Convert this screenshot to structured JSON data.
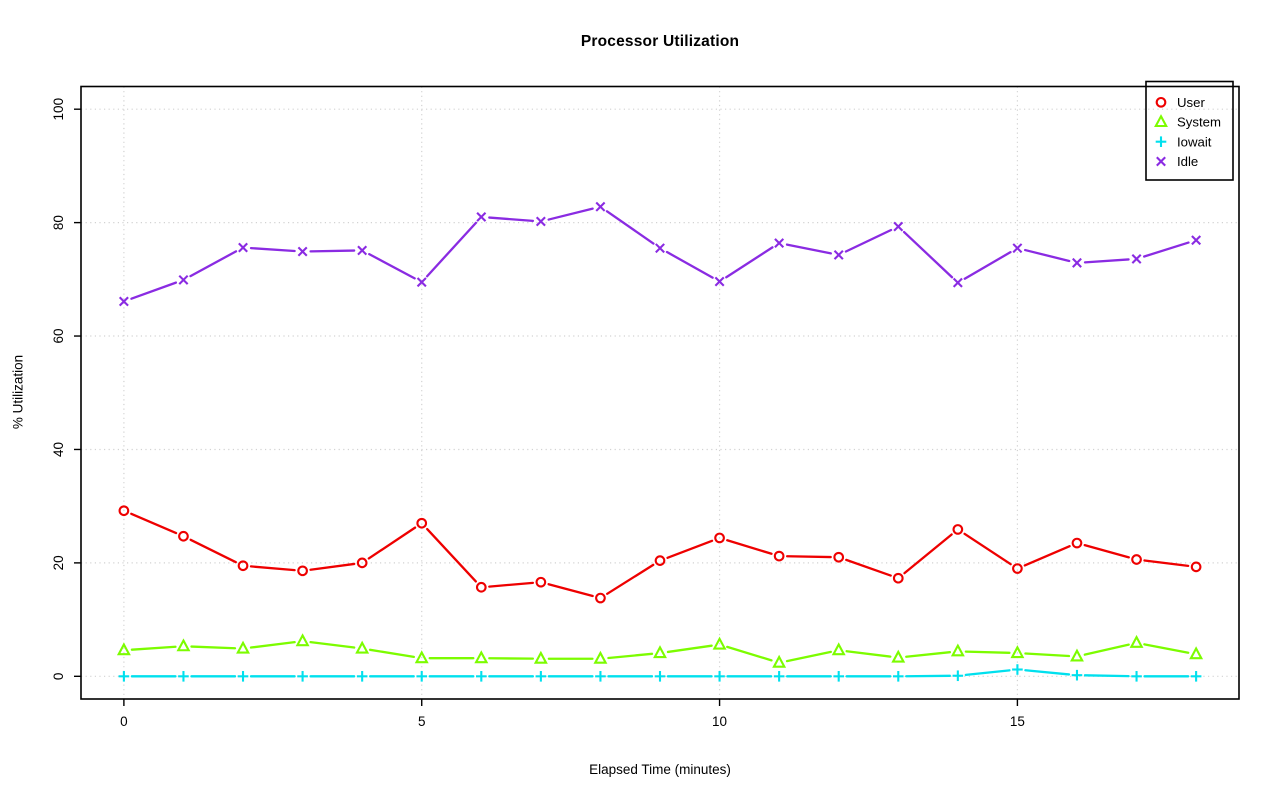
{
  "chart_data": {
    "type": "line",
    "title": "Processor Utilization",
    "xlabel": "Elapsed Time (minutes)",
    "ylabel": "% Utilization",
    "x": [
      0,
      1,
      2,
      3,
      4,
      5,
      6,
      7,
      8,
      9,
      10,
      11,
      12,
      13,
      14,
      15,
      16,
      17,
      18
    ],
    "xlim": [
      0,
      18
    ],
    "ylim": [
      0,
      100
    ],
    "xticks": [
      0,
      5,
      10,
      15
    ],
    "yticks": [
      0,
      20,
      40,
      60,
      80,
      100
    ],
    "grid": true,
    "grid_color": "#d2d2d2",
    "axis_color": "#000000",
    "legend_position": "top-right",
    "series": [
      {
        "name": "User",
        "color": "#ee0000",
        "marker": "circle",
        "values": [
          29.2,
          24.7,
          19.5,
          18.6,
          20.0,
          27.0,
          15.7,
          16.6,
          13.8,
          20.4,
          24.4,
          21.2,
          21.0,
          17.3,
          25.9,
          19.0,
          23.5,
          20.6,
          19.3
        ]
      },
      {
        "name": "System",
        "color": "#7cfc00",
        "marker": "triangle",
        "values": [
          4.6,
          5.3,
          4.9,
          6.2,
          4.9,
          3.2,
          3.2,
          3.1,
          3.1,
          4.1,
          5.6,
          2.4,
          4.6,
          3.3,
          4.4,
          4.1,
          3.5,
          5.9,
          3.9
        ]
      },
      {
        "name": "Iowait",
        "color": "#00e0ee",
        "marker": "plus",
        "values": [
          0,
          0,
          0,
          0,
          0,
          0,
          0,
          0,
          0,
          0,
          0,
          0,
          0,
          0,
          0.1,
          1.2,
          0.2,
          0,
          0
        ]
      },
      {
        "name": "Idle",
        "color": "#8a2be2",
        "marker": "x",
        "values": [
          66.1,
          69.9,
          75.6,
          74.9,
          75.1,
          69.5,
          81.0,
          80.2,
          82.8,
          75.5,
          69.6,
          76.4,
          74.3,
          79.3,
          69.4,
          75.5,
          72.9,
          73.6,
          76.9
        ]
      }
    ]
  }
}
